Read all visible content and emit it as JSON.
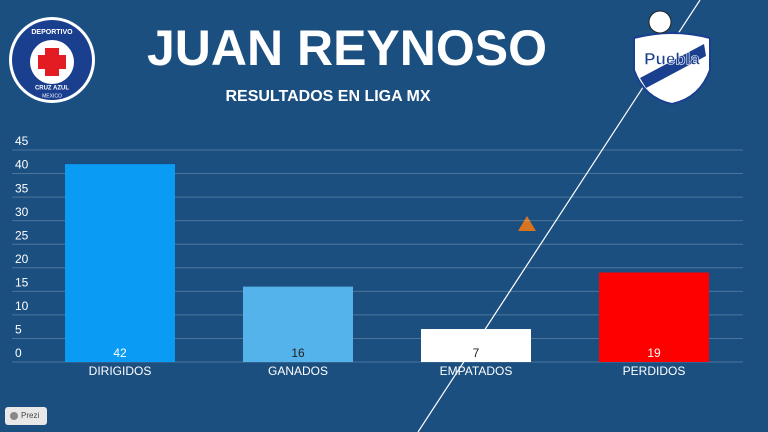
{
  "chart_data": {
    "type": "bar",
    "title": "JUAN  REYNOSO",
    "subtitle": "RESULTADOS EN LIGA MX",
    "categories": [
      "DIRIGIDOS",
      "GANADOS",
      "EMPATADOS",
      "PERDIDOS"
    ],
    "values": [
      42,
      16,
      7,
      19
    ],
    "colors": [
      "#0a9bf5",
      "#55b3ec",
      "#ffffff",
      "#ff0000"
    ],
    "ylim": [
      0,
      45
    ],
    "yticks": [
      0,
      5,
      10,
      15,
      20,
      25,
      30,
      35,
      40,
      45
    ],
    "grid": true
  },
  "logos": {
    "left": [
      "DEPORTIVO",
      "CRUZ AZUL",
      "MEXICO"
    ],
    "right": "Puebla"
  },
  "footer": {
    "button": "Prezi"
  }
}
